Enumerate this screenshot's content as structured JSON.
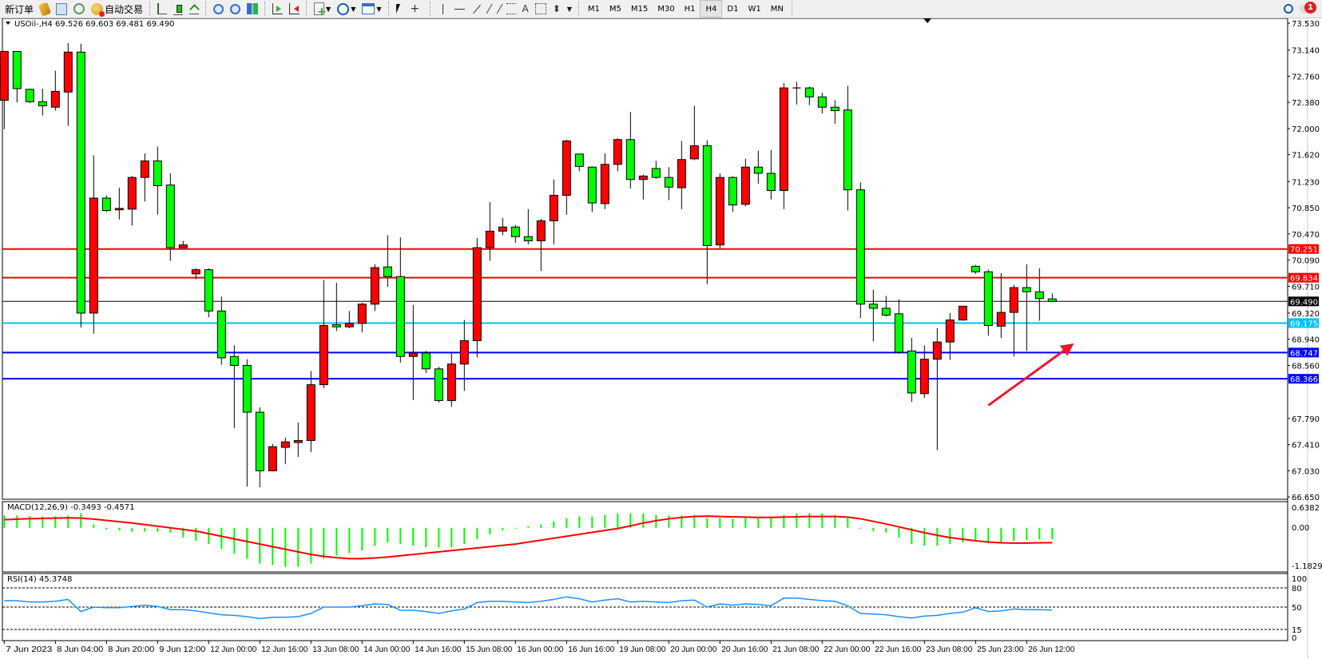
{
  "toolbar": {
    "new_order_label": "新订单",
    "auto_trading_label": "自动交易",
    "icons": [
      "new-order-icon",
      "market-watch-icon",
      "data-window-icon",
      "signals-icon",
      "auto-trading-icon",
      "bar-chart-icon",
      "candlestick-icon",
      "line-chart-icon",
      "zoom-in-icon",
      "zoom-out-icon",
      "tile-windows-icon",
      "chart-shift-icon",
      "auto-scroll-icon",
      "indicators-icon",
      "periods-icon",
      "templates-icon",
      "cursor-icon",
      "crosshair-icon",
      "vertical-line-icon",
      "horizontal-line-icon",
      "trendline-icon",
      "equidistant-channel-icon",
      "fibonacci-icon",
      "text-icon",
      "text-label-icon",
      "arrows-icon"
    ],
    "text_tool_label": "A",
    "timeframes": [
      "M1",
      "M5",
      "M15",
      "M30",
      "H1",
      "H4",
      "D1",
      "W1",
      "MN"
    ],
    "active_timeframe": "H4",
    "notification_count": "1"
  },
  "main_pane": {
    "title": "USOil-,H4  69.526 69.603 69.481 69.490"
  },
  "macd_pane": {
    "title": "MACD(12,26,9) -0.3493 -0.4571",
    "scale_labels": [
      "0.6382",
      "0.00",
      "-1.1829"
    ]
  },
  "rsi_pane": {
    "title": "RSI(14) 45.3748",
    "scale_labels": [
      "100",
      "80",
      "50",
      "15",
      "0"
    ]
  },
  "colors": {
    "bull_candle": "#ff0000",
    "bear_candle": "#00ff00",
    "macd_histogram": "#00ff00",
    "macd_signal": "#ff0000",
    "rsi_line": "#1e90ff",
    "annotation_arrow": "#e8192c"
  },
  "chart_data": {
    "type": "candlestick",
    "symbol": "USOil-",
    "timeframe": "H4",
    "ylim": [
      66.65,
      73.53
    ],
    "price_ticks": [
      "73.530",
      "73.140",
      "72.760",
      "72.380",
      "72.000",
      "71.620",
      "71.230",
      "70.850",
      "70.470",
      "70.090",
      "69.710",
      "69.320",
      "68.940",
      "68.560",
      "67.790",
      "67.410",
      "67.030",
      "66.650"
    ],
    "time_labels": [
      "7 Jun 2023",
      "8 Jun 04:00",
      "8 Jun 20:00",
      "9 Jun 12:00",
      "12 Jun 00:00",
      "12 Jun 16:00",
      "13 Jun 08:00",
      "14 Jun 00:00",
      "14 Jun 16:00",
      "15 Jun 08:00",
      "16 Jun 00:00",
      "16 Jun 16:00",
      "19 Jun 08:00",
      "20 Jun 00:00",
      "20 Jun 16:00",
      "21 Jun 08:00",
      "22 Jun 00:00",
      "22 Jun 16:00",
      "23 Jun 08:00",
      "25 Jun 23:00",
      "26 Jun 12:00"
    ],
    "time_label_every_n_bars": 4,
    "ohlc": [
      [
        72.41,
        73.12,
        71.99,
        73.12
      ],
      [
        73.12,
        73.12,
        72.38,
        72.58
      ],
      [
        72.57,
        72.58,
        72.37,
        72.39
      ],
      [
        72.39,
        72.58,
        72.19,
        72.33
      ],
      [
        72.31,
        72.84,
        72.26,
        72.54
      ],
      [
        72.53,
        73.24,
        72.04,
        73.11
      ],
      [
        73.11,
        73.23,
        69.11,
        69.32
      ],
      [
        69.32,
        71.61,
        69.02,
        70.99
      ],
      [
        70.99,
        71.03,
        70.79,
        70.81
      ],
      [
        70.82,
        71.14,
        70.68,
        70.84
      ],
      [
        70.83,
        71.31,
        70.59,
        71.29
      ],
      [
        71.29,
        71.64,
        70.94,
        71.53
      ],
      [
        71.53,
        71.74,
        70.75,
        71.17
      ],
      [
        71.18,
        71.35,
        70.08,
        70.27
      ],
      [
        70.27,
        70.37,
        70.27,
        70.31
      ],
      [
        69.89,
        69.97,
        69.81,
        69.95
      ],
      [
        69.95,
        69.97,
        69.26,
        69.35
      ],
      [
        69.35,
        69.56,
        68.57,
        68.67
      ],
      [
        68.69,
        68.85,
        67.65,
        68.56
      ],
      [
        68.56,
        68.65,
        66.8,
        67.88
      ],
      [
        67.88,
        67.95,
        66.79,
        67.03
      ],
      [
        67.03,
        67.42,
        67.02,
        67.38
      ],
      [
        67.37,
        67.51,
        67.13,
        67.45
      ],
      [
        67.44,
        67.73,
        67.23,
        67.47
      ],
      [
        67.47,
        68.48,
        67.3,
        68.28
      ],
      [
        68.28,
        69.8,
        68.23,
        69.14
      ],
      [
        69.15,
        69.76,
        69.06,
        69.12
      ],
      [
        69.12,
        69.35,
        69.1,
        69.17
      ],
      [
        69.17,
        69.47,
        69.04,
        69.45
      ],
      [
        69.45,
        70.03,
        69.35,
        69.98
      ],
      [
        69.99,
        70.45,
        69.7,
        69.85
      ],
      [
        69.85,
        70.42,
        68.6,
        68.69
      ],
      [
        68.69,
        69.44,
        68.06,
        68.74
      ],
      [
        68.74,
        68.77,
        68.45,
        68.51
      ],
      [
        68.51,
        68.54,
        68.02,
        68.05
      ],
      [
        68.05,
        68.74,
        67.96,
        68.58
      ],
      [
        68.58,
        69.22,
        68.19,
        68.92
      ],
      [
        68.92,
        70.41,
        68.68,
        70.27
      ],
      [
        70.27,
        70.93,
        70.08,
        70.51
      ],
      [
        70.51,
        70.7,
        70.45,
        70.57
      ],
      [
        70.57,
        70.6,
        70.34,
        70.43
      ],
      [
        70.43,
        70.83,
        70.32,
        70.37
      ],
      [
        70.37,
        70.69,
        69.93,
        70.66
      ],
      [
        70.66,
        71.26,
        70.32,
        71.03
      ],
      [
        71.03,
        71.84,
        70.75,
        71.82
      ],
      [
        71.63,
        71.63,
        71.38,
        71.45
      ],
      [
        71.44,
        71.45,
        70.79,
        70.92
      ],
      [
        70.91,
        71.64,
        70.83,
        71.48
      ],
      [
        71.48,
        71.86,
        71.38,
        71.84
      ],
      [
        71.84,
        72.24,
        71.13,
        71.26
      ],
      [
        71.26,
        71.33,
        70.97,
        71.31
      ],
      [
        71.42,
        71.53,
        71.27,
        71.29
      ],
      [
        71.29,
        71.44,
        70.96,
        71.15
      ],
      [
        71.14,
        71.82,
        70.83,
        71.55
      ],
      [
        71.56,
        72.33,
        71.54,
        71.75
      ],
      [
        71.75,
        71.83,
        69.74,
        70.3
      ],
      [
        70.31,
        71.35,
        70.26,
        71.29
      ],
      [
        71.29,
        71.31,
        70.79,
        70.89
      ],
      [
        70.9,
        71.56,
        70.87,
        71.44
      ],
      [
        71.44,
        71.68,
        71.2,
        71.35
      ],
      [
        71.35,
        71.69,
        70.97,
        71.1
      ],
      [
        71.1,
        72.66,
        70.83,
        72.59
      ],
      [
        72.59,
        72.68,
        72.35,
        72.59
      ],
      [
        72.59,
        72.61,
        72.34,
        72.46
      ],
      [
        72.46,
        72.52,
        72.22,
        72.31
      ],
      [
        72.31,
        72.41,
        72.07,
        72.26
      ],
      [
        72.27,
        72.62,
        70.81,
        71.11
      ],
      [
        71.11,
        71.22,
        69.25,
        69.45
      ],
      [
        69.45,
        69.66,
        68.91,
        69.39
      ],
      [
        69.39,
        69.57,
        69.27,
        69.29
      ],
      [
        69.31,
        69.52,
        68.73,
        68.75
      ],
      [
        68.77,
        68.96,
        68.03,
        68.16
      ],
      [
        68.15,
        68.85,
        68.09,
        68.65
      ],
      [
        68.65,
        69.1,
        67.33,
        68.9
      ],
      [
        68.9,
        69.32,
        68.64,
        69.22
      ],
      [
        69.22,
        69.42,
        69.21,
        69.42
      ],
      [
        70.0,
        70.02,
        69.89,
        69.92
      ],
      [
        69.92,
        69.95,
        68.99,
        69.14
      ],
      [
        69.13,
        69.9,
        68.96,
        69.33
      ],
      [
        69.33,
        69.73,
        68.69,
        69.69
      ],
      [
        69.69,
        70.03,
        68.77,
        69.63
      ],
      [
        69.63,
        69.97,
        69.21,
        69.53
      ],
      [
        69.526,
        69.603,
        69.481,
        69.49
      ]
    ],
    "horizontal_lines": [
      {
        "price": "70.251",
        "color": "#ff0000"
      },
      {
        "price": "69.834",
        "color": "#ff0000"
      },
      {
        "price": "69.490",
        "color": "#000000"
      },
      {
        "price": "69.175",
        "color": "#00bfff"
      },
      {
        "price": "68.747",
        "color": "#0000ff"
      },
      {
        "price": "68.366",
        "color": "#0000ff"
      }
    ],
    "annotation_arrow": {
      "from_bar": 77,
      "from_price": 67.98,
      "to_bar": 83.7,
      "to_price": 68.88
    },
    "macd": {
      "ylim": [
        -1.1829,
        0.6382
      ],
      "histogram": [
        0.38,
        0.38,
        0.36,
        0.35,
        0.36,
        0.38,
        0.45,
        0.1,
        -0.05,
        -0.08,
        -0.12,
        -0.12,
        -0.12,
        -0.15,
        -0.3,
        -0.4,
        -0.5,
        -0.65,
        -0.8,
        -0.95,
        -1.1,
        -1.15,
        -1.2,
        -1.2,
        -1.1,
        -0.95,
        -0.85,
        -0.78,
        -0.7,
        -0.55,
        -0.45,
        -0.5,
        -0.55,
        -0.6,
        -0.6,
        -0.6,
        -0.5,
        -0.35,
        -0.2,
        -0.08,
        0.0,
        0.05,
        0.1,
        0.2,
        0.3,
        0.35,
        0.35,
        0.4,
        0.45,
        0.45,
        0.45,
        0.4,
        0.38,
        0.38,
        0.4,
        0.3,
        0.3,
        0.28,
        0.3,
        0.3,
        0.3,
        0.4,
        0.45,
        0.45,
        0.45,
        0.4,
        0.3,
        0.0,
        -0.1,
        -0.15,
        -0.3,
        -0.5,
        -0.55,
        -0.55,
        -0.5,
        -0.45,
        -0.4,
        -0.45,
        -0.45,
        -0.4,
        -0.38,
        -0.36,
        -0.3493
      ],
      "signal": [
        0.25,
        0.27,
        0.28,
        0.29,
        0.3,
        0.31,
        0.3,
        0.27,
        0.23,
        0.19,
        0.15,
        0.1,
        0.05,
        0.0,
        -0.05,
        -0.1,
        -0.18,
        -0.26,
        -0.34,
        -0.42,
        -0.5,
        -0.58,
        -0.66,
        -0.74,
        -0.82,
        -0.88,
        -0.92,
        -0.95,
        -0.95,
        -0.93,
        -0.9,
        -0.86,
        -0.82,
        -0.78,
        -0.74,
        -0.7,
        -0.66,
        -0.62,
        -0.58,
        -0.54,
        -0.5,
        -0.44,
        -0.38,
        -0.32,
        -0.26,
        -0.2,
        -0.14,
        -0.08,
        -0.02,
        0.06,
        0.15,
        0.22,
        0.28,
        0.32,
        0.35,
        0.36,
        0.35,
        0.34,
        0.33,
        0.32,
        0.32,
        0.33,
        0.34,
        0.35,
        0.35,
        0.35,
        0.33,
        0.28,
        0.2,
        0.12,
        0.03,
        -0.06,
        -0.15,
        -0.23,
        -0.3,
        -0.35,
        -0.4,
        -0.44,
        -0.46,
        -0.47,
        -0.47,
        -0.46,
        -0.4571
      ]
    },
    "rsi": {
      "ylim": [
        0,
        100
      ],
      "levels": [
        80,
        50,
        15
      ],
      "values": [
        60,
        60,
        58,
        58,
        59,
        62,
        43,
        50,
        49,
        49,
        51,
        53,
        51,
        46,
        46,
        44,
        41,
        38,
        37,
        35,
        32,
        34,
        34,
        35,
        40,
        50,
        50,
        50,
        52,
        55,
        54,
        45,
        45,
        43,
        40,
        44,
        47,
        57,
        59,
        59,
        58,
        57,
        59,
        62,
        66,
        63,
        58,
        61,
        63,
        58,
        59,
        58,
        57,
        60,
        61,
        50,
        55,
        53,
        55,
        54,
        52,
        64,
        64,
        62,
        60,
        59,
        52,
        40,
        39,
        38,
        35,
        33,
        36,
        37,
        40,
        42,
        49,
        43,
        44,
        47,
        46,
        46,
        45.3748
      ]
    }
  }
}
